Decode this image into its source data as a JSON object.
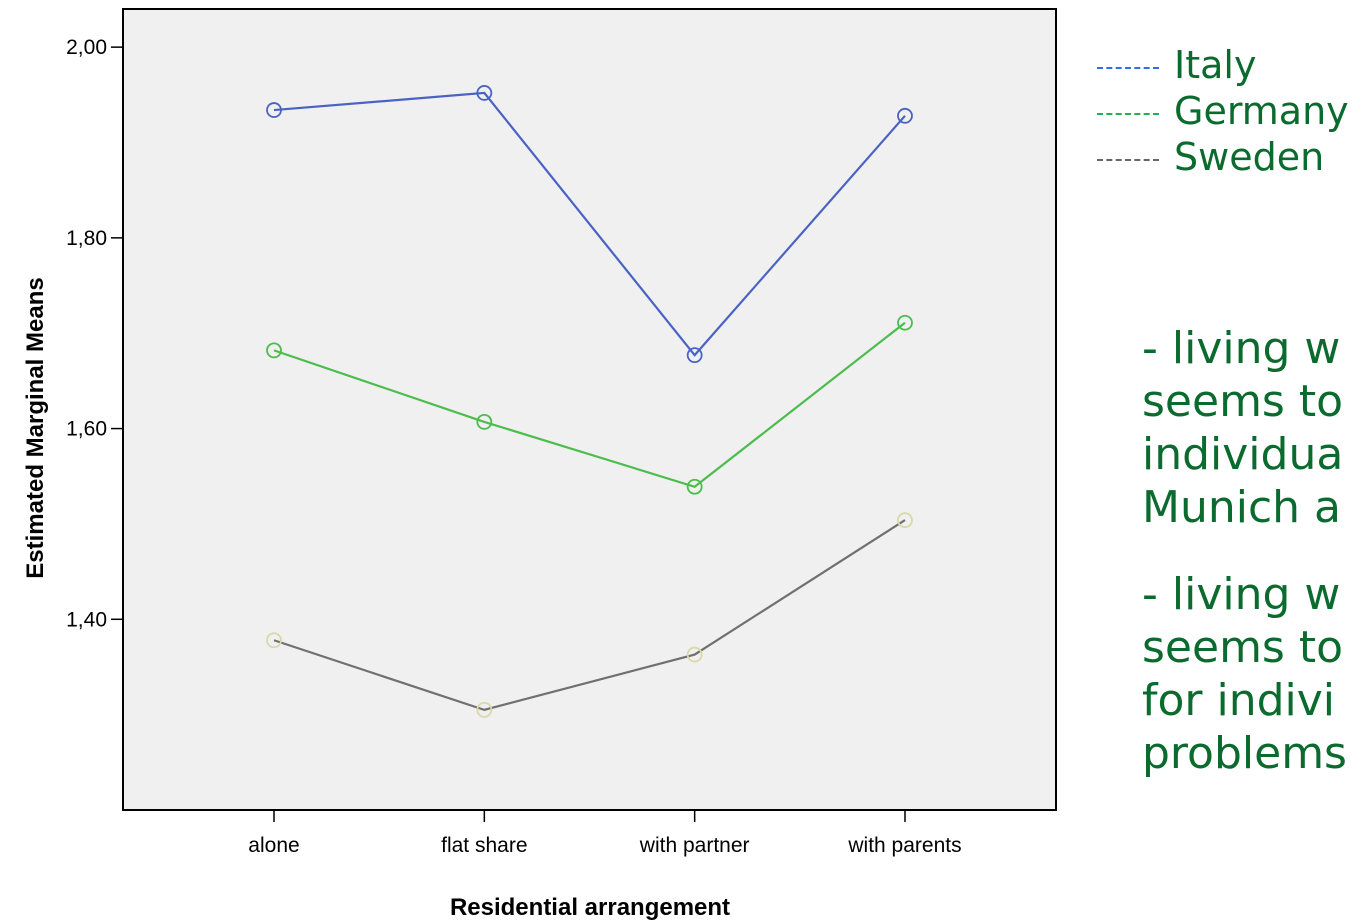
{
  "chart_data": {
    "type": "line",
    "xlabel": "Residential arrangement",
    "ylabel": "Estimated Marginal Means",
    "categories": [
      "alone",
      "flat share",
      "with partner",
      "with parents"
    ],
    "yticks": [
      "1,40",
      "1,60",
      "1,80",
      "2,00"
    ],
    "ytick_values": [
      1.4,
      1.6,
      1.8,
      2.0
    ],
    "ylim": [
      1.2,
      2.04
    ],
    "grid": false,
    "series": [
      {
        "name": "Italy",
        "color": "#4a62c4",
        "values": [
          1.934,
          1.952,
          1.677,
          1.928
        ]
      },
      {
        "name": "Germany",
        "color": "#4cbd4c",
        "values": [
          1.682,
          1.607,
          1.539,
          1.711
        ]
      },
      {
        "name": "Sweden",
        "color": "#707070",
        "values": [
          1.378,
          1.305,
          1.363,
          1.504
        ]
      }
    ]
  },
  "legend": {
    "dash": "----",
    "items": [
      {
        "label": "Italy",
        "color": "#2f6fe0"
      },
      {
        "label": "Germany",
        "color": "#22b34a"
      },
      {
        "label": "Sweden",
        "color": "#666666"
      }
    ]
  },
  "notes": [
    [
      "- living w",
      "seems to",
      "individua",
      "Munich a"
    ],
    [
      "- living w",
      "seems to",
      "for indivi",
      "problems"
    ]
  ]
}
